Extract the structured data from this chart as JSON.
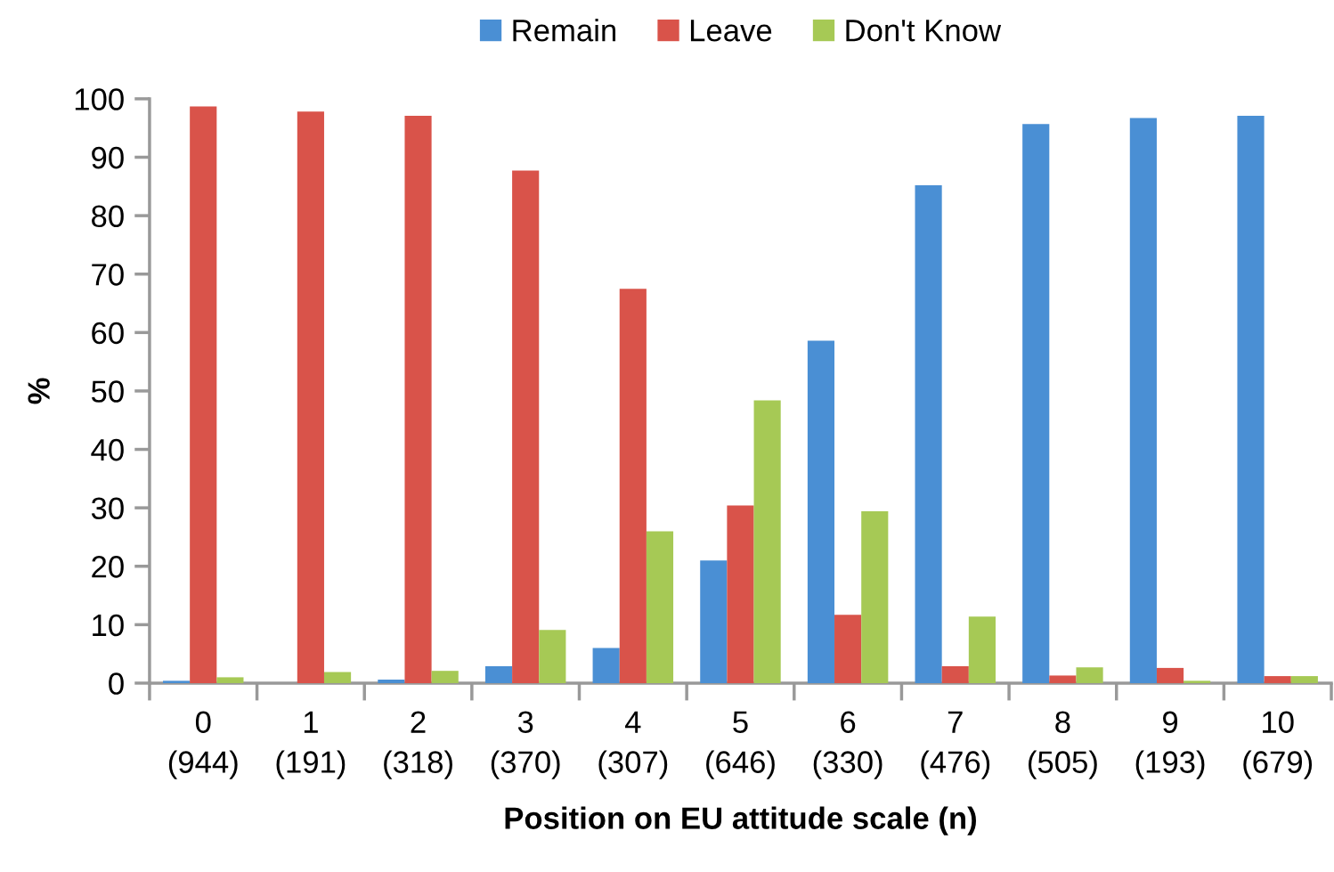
{
  "chart_data": {
    "type": "bar",
    "categories": [
      "0\n(944)",
      "1\n(191)",
      "2\n(318)",
      "3\n(370)",
      "4\n(307)",
      "5\n(646)",
      "6\n(330)",
      "7\n(476)",
      "8\n(505)",
      "9\n(193)",
      "10\n(679)"
    ],
    "series": [
      {
        "name": "Remain",
        "color": "#4a8fd4",
        "values": [
          0.4,
          null,
          0.6,
          2.9,
          6.0,
          21.0,
          58.6,
          85.2,
          95.7,
          96.7,
          97.1
        ]
      },
      {
        "name": "Leave",
        "color": "#d9534a",
        "values": [
          98.7,
          97.8,
          97.1,
          87.7,
          67.5,
          30.4,
          11.7,
          2.9,
          1.3,
          2.6,
          1.2
        ]
      },
      {
        "name": "Don't Know",
        "color": "#a6c955",
        "values": [
          1.0,
          1.9,
          2.1,
          9.1,
          26.0,
          48.4,
          29.4,
          11.4,
          2.7,
          0.4,
          1.2
        ]
      }
    ],
    "ylim": [
      0,
      100
    ],
    "yticks": [
      0,
      10,
      20,
      30,
      40,
      50,
      60,
      70,
      80,
      90,
      100
    ],
    "xlabel": "Position on EU attitude scale (n)",
    "ylabel": "%",
    "legend": "top"
  }
}
